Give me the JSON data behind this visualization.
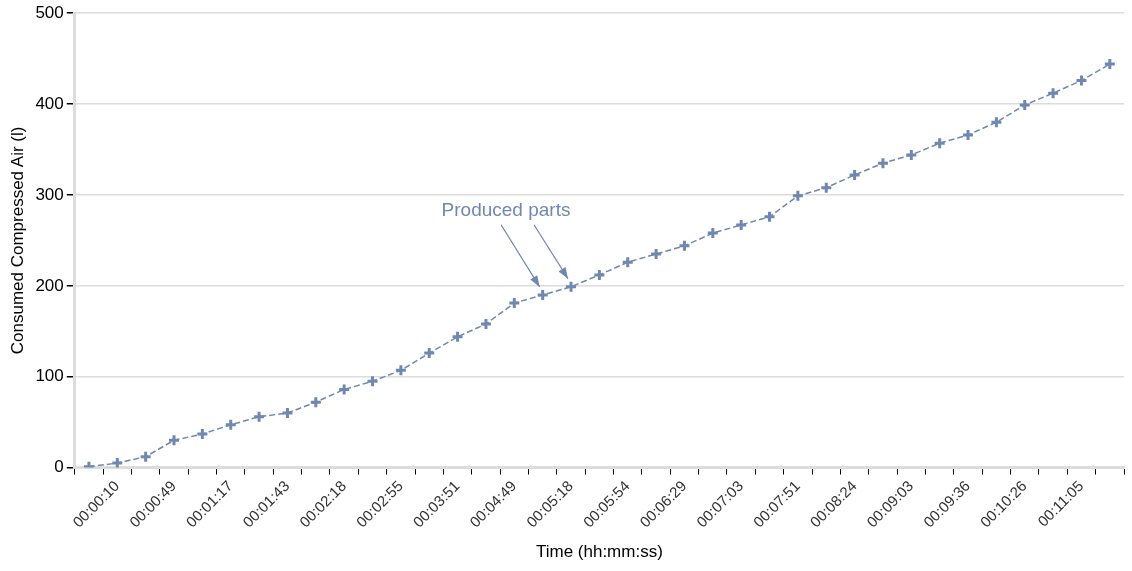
{
  "chart_data": {
    "type": "line",
    "xlabel": "Time (hh:mm:ss)",
    "ylabel": "Consumed Compressed Air (l)",
    "categories": [
      null,
      "00:00:10",
      null,
      "00:00:49",
      null,
      "00:01:17",
      null,
      "00:01:43",
      null,
      "00:02:18",
      null,
      "00:02:55",
      null,
      "00:03:51",
      null,
      "00:04:49",
      null,
      "00:05:18",
      null,
      "00:05:54",
      null,
      "00:06:29",
      null,
      "00:07:03",
      null,
      "00:07:51",
      null,
      "00:08:24",
      null,
      "00:09:03",
      null,
      "00:09:36",
      null,
      "00:10:26",
      null,
      "00:11:05",
      null
    ],
    "series": [
      {
        "color": "#7088b0",
        "values": [
          1,
          5,
          12,
          30,
          37,
          47,
          56,
          60,
          72,
          86,
          95,
          107,
          126,
          144,
          158,
          181,
          190,
          199,
          212,
          226,
          235,
          244,
          258,
          267,
          276,
          299,
          308,
          322,
          335,
          344,
          357,
          366,
          380,
          399,
          412,
          426,
          444
        ]
      }
    ],
    "ylim": [
      0,
      500
    ],
    "yticks": [
      0,
      100,
      200,
      300,
      400,
      500
    ],
    "grid": "y",
    "legend": false,
    "marker": "cross",
    "line_style": "dashed",
    "annotations": [
      {
        "text": "Produced parts",
        "x": "00:05:18",
        "y": 199
      }
    ]
  }
}
